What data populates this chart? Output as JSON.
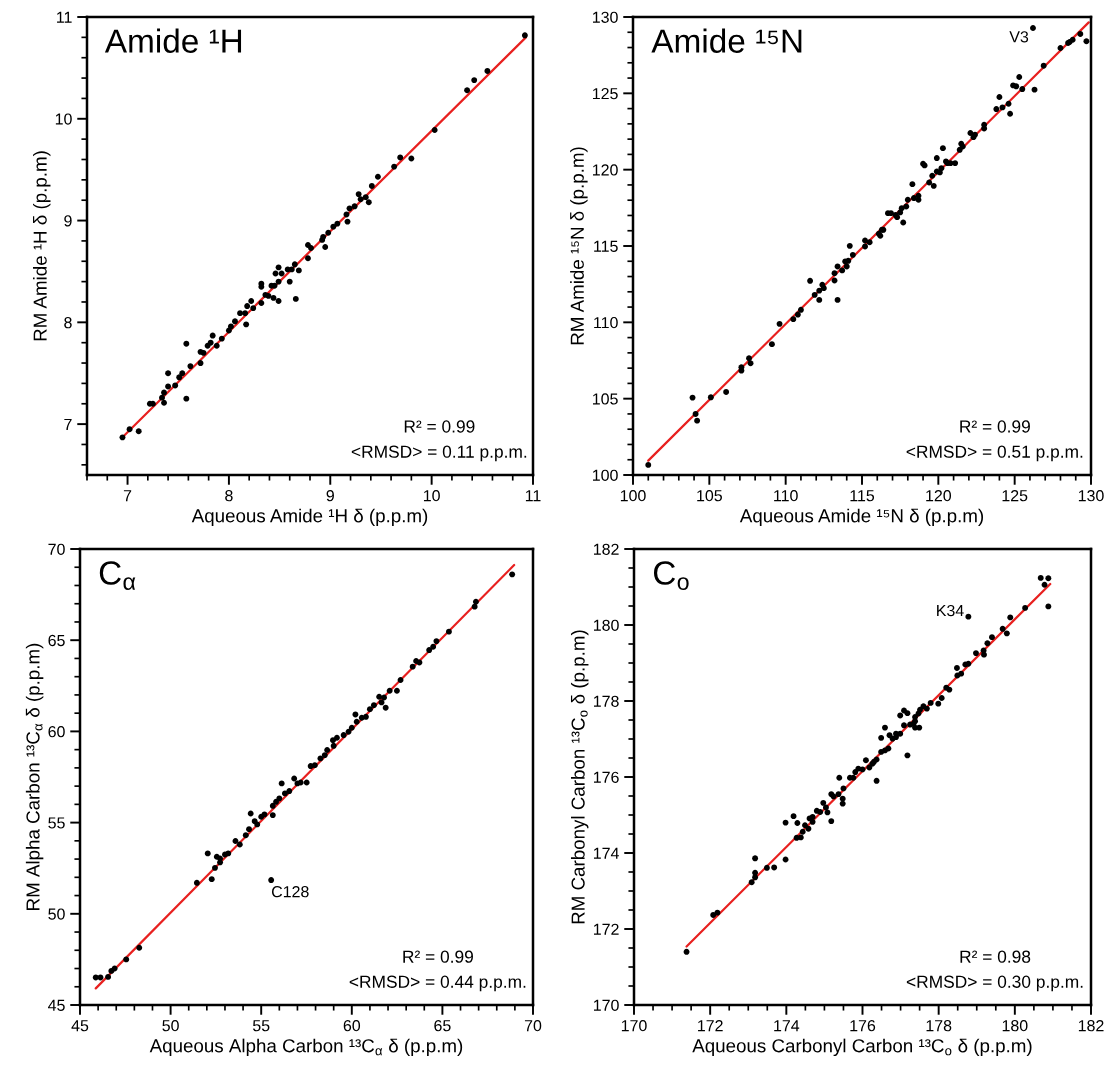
{
  "chart_data": [
    {
      "type": "scatter",
      "title": "Amide ¹H",
      "xlabel": "Aqueous Amide ¹H δ (p.p.m)",
      "ylabel": "RM Amide ¹H δ (p.p.m)",
      "xlim": [
        6.6,
        11
      ],
      "ylim": [
        6.5,
        11
      ],
      "xticks": [
        {
          "value": 6.6,
          "label": null
        },
        {
          "value": 6.8,
          "label": null
        },
        7,
        {
          "value": 7.2,
          "label": null
        },
        {
          "value": 7.4,
          "label": null
        },
        {
          "value": 7.6,
          "label": null
        },
        {
          "value": 7.8,
          "label": null
        },
        8,
        {
          "value": 8.2,
          "label": null
        },
        {
          "value": 8.4,
          "label": null
        },
        {
          "value": 8.6,
          "label": null
        },
        {
          "value": 8.8,
          "label": null
        },
        9,
        {
          "value": 9.2,
          "label": null
        },
        {
          "value": 9.4,
          "label": null
        },
        {
          "value": 9.6,
          "label": null
        },
        {
          "value": 9.8,
          "label": null
        },
        10,
        {
          "value": 10.2,
          "label": null
        },
        {
          "value": 10.4,
          "label": null
        },
        {
          "value": 10.6,
          "label": null
        },
        {
          "value": 10.8,
          "label": null
        },
        11
      ],
      "yticks": [
        {
          "value": 6.6,
          "label": null
        },
        {
          "value": 6.8,
          "label": null
        },
        7,
        {
          "value": 7.2,
          "label": null
        },
        {
          "value": 7.4,
          "label": null
        },
        {
          "value": 7.6,
          "label": null
        },
        {
          "value": 7.8,
          "label": null
        },
        8,
        {
          "value": 8.2,
          "label": null
        },
        {
          "value": 8.4,
          "label": null
        },
        {
          "value": 8.6,
          "label": null
        },
        {
          "value": 8.8,
          "label": null
        },
        9,
        {
          "value": 9.2,
          "label": null
        },
        {
          "value": 9.4,
          "label": null
        },
        {
          "value": 9.6,
          "label": null
        },
        {
          "value": 9.8,
          "label": null
        },
        10,
        {
          "value": 10.2,
          "label": null
        },
        {
          "value": 10.4,
          "label": null
        },
        {
          "value": 10.6,
          "label": null
        },
        {
          "value": 10.8,
          "label": null
        },
        11
      ],
      "annotations": [
        "R² = 0.99",
        "<RMSD> = 0.11 p.p.m."
      ],
      "series": [
        {
          "marker": "circle",
          "color": "#000000",
          "x": [
            10.92,
            10.55,
            10.42,
            10.35,
            10.03,
            9.8,
            9.69,
            9.63,
            9.47,
            9.41,
            9.38,
            9.35,
            9.28,
            9.3,
            9.24,
            9.19,
            9.16,
            9.17,
            9.07,
            9.03,
            8.98,
            8.93,
            8.92,
            8.95,
            8.81,
            8.78,
            8.78,
            8.69,
            8.65,
            8.62,
            8.58,
            8.6,
            8.52,
            8.49,
            8.46,
            8.49,
            8.45,
            8.42,
            8.32,
            8.32,
            8.36,
            8.39,
            8.44,
            8.49,
            8.66,
            8.32,
            8.22,
            8.24,
            8.18,
            8.16,
            8.11,
            8.17,
            8.06,
            8.02,
            8.0,
            7.93,
            7.84,
            7.82,
            7.79,
            7.75,
            7.72,
            7.72,
            7.88,
            7.62,
            7.58,
            7.58,
            7.54,
            7.51,
            7.47,
            7.4,
            7.4,
            7.36,
            7.34,
            7.36,
            7.25,
            7.22,
            7.11,
            7.02,
            6.95
          ],
          "values": [
            10.82,
            10.47,
            10.38,
            10.28,
            9.89,
            9.61,
            9.62,
            9.53,
            9.43,
            9.34,
            9.18,
            9.23,
            9.26,
            9.21,
            9.14,
            9.12,
            9.06,
            8.99,
            8.97,
            8.94,
            8.88,
            8.84,
            8.81,
            8.74,
            8.73,
            8.76,
            8.63,
            8.51,
            8.57,
            8.52,
            8.52,
            8.4,
            8.48,
            8.54,
            8.48,
            8.4,
            8.36,
            8.36,
            8.38,
            8.35,
            8.27,
            8.26,
            8.24,
            8.21,
            8.23,
            8.19,
            8.21,
            8.14,
            8.16,
            8.09,
            8.09,
            7.98,
            8.01,
            7.96,
            7.92,
            7.84,
            7.87,
            7.8,
            7.77,
            7.7,
            7.71,
            7.6,
            7.77,
            7.57,
            7.79,
            7.25,
            7.5,
            7.46,
            7.38,
            7.5,
            7.37,
            7.31,
            7.26,
            7.21,
            7.2,
            7.2,
            6.93,
            6.95,
            6.87
          ]
        },
        {
          "type": "line",
          "color": "#e8201f",
          "x": [
            6.97,
            10.93
          ],
          "values": [
            6.89,
            10.8
          ]
        }
      ]
    },
    {
      "type": "scatter",
      "title": "Amide ¹⁵N",
      "xlabel": "Aqueous Amide ¹⁵N δ (p.p.m)",
      "ylabel": "RM Amide ¹⁵N δ (p.p.m)",
      "xlim": [
        100,
        130
      ],
      "ylim": [
        100,
        130
      ],
      "xticks": [
        100,
        {
          "value": 101,
          "label": null
        },
        {
          "value": 102,
          "label": null
        },
        {
          "value": 103,
          "label": null
        },
        {
          "value": 104,
          "label": null
        },
        105,
        {
          "value": 106,
          "label": null
        },
        {
          "value": 107,
          "label": null
        },
        {
          "value": 108,
          "label": null
        },
        {
          "value": 109,
          "label": null
        },
        110,
        {
          "value": 111,
          "label": null
        },
        {
          "value": 112,
          "label": null
        },
        {
          "value": 113,
          "label": null
        },
        {
          "value": 114,
          "label": null
        },
        115,
        {
          "value": 116,
          "label": null
        },
        {
          "value": 117,
          "label": null
        },
        {
          "value": 118,
          "label": null
        },
        {
          "value": 119,
          "label": null
        },
        120,
        {
          "value": 121,
          "label": null
        },
        {
          "value": 122,
          "label": null
        },
        {
          "value": 123,
          "label": null
        },
        {
          "value": 124,
          "label": null
        },
        125,
        {
          "value": 126,
          "label": null
        },
        {
          "value": 127,
          "label": null
        },
        {
          "value": 128,
          "label": null
        },
        {
          "value": 129,
          "label": null
        },
        130
      ],
      "yticks": [
        100,
        {
          "value": 101,
          "label": null
        },
        {
          "value": 102,
          "label": null
        },
        {
          "value": 103,
          "label": null
        },
        {
          "value": 104,
          "label": null
        },
        105,
        {
          "value": 106,
          "label": null
        },
        {
          "value": 107,
          "label": null
        },
        {
          "value": 108,
          "label": null
        },
        {
          "value": 109,
          "label": null
        },
        110,
        {
          "value": 111,
          "label": null
        },
        {
          "value": 112,
          "label": null
        },
        {
          "value": 113,
          "label": null
        },
        {
          "value": 114,
          "label": null
        },
        115,
        {
          "value": 116,
          "label": null
        },
        {
          "value": 117,
          "label": null
        },
        {
          "value": 118,
          "label": null
        },
        {
          "value": 119,
          "label": null
        },
        120,
        {
          "value": 121,
          "label": null
        },
        {
          "value": 122,
          "label": null
        },
        {
          "value": 123,
          "label": null
        },
        {
          "value": 124,
          "label": null
        },
        125,
        {
          "value": 126,
          "label": null
        },
        {
          "value": 127,
          "label": null
        },
        {
          "value": 128,
          "label": null
        },
        {
          "value": 129,
          "label": null
        },
        130
      ],
      "annotations": [
        "R² = 0.99",
        "<RMSD> = 0.51 p.p.m.",
        {
          "text": "V3",
          "x": 126.2,
          "y": 129.28
        }
      ],
      "series": [
        {
          "marker": "circle",
          "color": "#000000",
          "x": [
            101.0,
            103.9,
            104.1,
            104.2,
            105.1,
            106.1,
            107.1,
            107.1,
            107.6,
            107.7,
            109.1,
            109.6,
            110.5,
            110.8,
            111.0,
            111.6,
            111.9,
            112.2,
            112.2,
            112.4,
            112.5,
            113.2,
            113.2,
            113.4,
            113.4,
            113.7,
            113.9,
            114.1,
            114.0,
            114.2,
            114.4,
            115.2,
            115.2,
            115.5,
            116.1,
            116.3,
            116.4,
            116.2,
            116.7,
            116.9,
            117.2,
            117.3,
            117.5,
            117.6,
            117.7,
            117.9,
            118.0,
            118.3,
            118.4,
            118.7,
            118.7,
            119.0,
            119.1,
            119.4,
            119.6,
            119.7,
            119.9,
            119.9,
            120.1,
            120.2,
            120.3,
            120.5,
            120.6,
            120.8,
            121.1,
            121.4,
            121.5,
            121.6,
            122.1,
            122.3,
            122.4,
            123.0,
            123.0,
            123.8,
            124.2,
            124.0,
            124.6,
            124.7,
            124.9,
            125.1,
            125.3,
            125.5,
            126.3,
            126.2,
            126.9,
            128.0,
            128.5,
            128.6,
            128.8,
            129.3,
            129.7
          ],
          "values": [
            100.66,
            105.07,
            104.0,
            103.56,
            105.09,
            105.44,
            107.06,
            106.84,
            107.65,
            107.32,
            108.57,
            109.9,
            110.21,
            110.51,
            110.82,
            112.72,
            111.8,
            112.08,
            111.47,
            112.46,
            112.24,
            113.22,
            112.74,
            113.66,
            111.47,
            113.4,
            113.99,
            114.03,
            113.66,
            115.01,
            114.42,
            115.36,
            114.97,
            115.25,
            115.8,
            116.06,
            116.06,
            115.67,
            117.15,
            117.15,
            117.04,
            116.89,
            117.2,
            117.48,
            116.54,
            117.59,
            118.03,
            119.05,
            118.14,
            118.29,
            118.03,
            120.39,
            120.28,
            119.16,
            119.6,
            118.94,
            120.76,
            119.88,
            119.82,
            120.1,
            121.41,
            120.54,
            120.43,
            120.43,
            120.43,
            121.3,
            121.7,
            121.52,
            122.4,
            122.13,
            122.29,
            122.94,
            122.7,
            123.97,
            124.08,
            124.76,
            124.32,
            123.66,
            125.52,
            125.46,
            126.07,
            125.28,
            125.24,
            129.28,
            126.81,
            127.97,
            128.3,
            128.36,
            128.51,
            128.89,
            128.41
          ]
        },
        {
          "type": "line",
          "color": "#e8201f",
          "x": [
            101.0,
            129.85
          ],
          "values": [
            100.94,
            129.65
          ]
        }
      ]
    },
    {
      "type": "scatter",
      "title": "C$_{α}$",
      "xlabel": "Aqueous Alpha Carbon ¹³C$_{α}$ δ (p.p.m)",
      "ylabel": "RM Alpha Carbon ¹³C$_{α}$ δ (p.p.m)",
      "xlim": [
        45,
        70
      ],
      "ylim": [
        45,
        70
      ],
      "xticks": [
        45,
        {
          "value": 46,
          "label": null
        },
        {
          "value": 47,
          "label": null
        },
        {
          "value": 48,
          "label": null
        },
        {
          "value": 49,
          "label": null
        },
        50,
        {
          "value": 51,
          "label": null
        },
        {
          "value": 52,
          "label": null
        },
        {
          "value": 53,
          "label": null
        },
        {
          "value": 54,
          "label": null
        },
        55,
        {
          "value": 56,
          "label": null
        },
        {
          "value": 57,
          "label": null
        },
        {
          "value": 58,
          "label": null
        },
        {
          "value": 59,
          "label": null
        },
        60,
        {
          "value": 61,
          "label": null
        },
        {
          "value": 62,
          "label": null
        },
        {
          "value": 63,
          "label": null
        },
        {
          "value": 64,
          "label": null
        },
        65,
        {
          "value": 66,
          "label": null
        },
        {
          "value": 67,
          "label": null
        },
        {
          "value": 68,
          "label": null
        },
        {
          "value": 69,
          "label": null
        },
        70
      ],
      "yticks": [
        45,
        {
          "value": 46,
          "label": null
        },
        {
          "value": 47,
          "label": null
        },
        {
          "value": 48,
          "label": null
        },
        {
          "value": 49,
          "label": null
        },
        50,
        {
          "value": 51,
          "label": null
        },
        {
          "value": 52,
          "label": null
        },
        {
          "value": 53,
          "label": null
        },
        {
          "value": 54,
          "label": null
        },
        55,
        {
          "value": 56,
          "label": null
        },
        {
          "value": 57,
          "label": null
        },
        {
          "value": 58,
          "label": null
        },
        {
          "value": 59,
          "label": null
        },
        60,
        {
          "value": 61,
          "label": null
        },
        {
          "value": 62,
          "label": null
        },
        {
          "value": 63,
          "label": null
        },
        {
          "value": 64,
          "label": null
        },
        65,
        {
          "value": 66,
          "label": null
        },
        {
          "value": 67,
          "label": null
        },
        {
          "value": 68,
          "label": null
        },
        {
          "value": 69,
          "label": null
        },
        70
      ],
      "annotations": [
        "R² = 0.99",
        "<RMSD> = 0.44 p.p.m.",
        {
          "text": "C128",
          "x": 55.55,
          "y": 51.85
        }
      ],
      "series": [
        {
          "marker": "circle",
          "color": "#000000",
          "x": [
            68.85,
            66.85,
            66.78,
            65.36,
            64.67,
            64.49,
            64.27,
            63.73,
            63.55,
            63.36,
            62.69,
            62.49,
            62.09,
            61.87,
            61.78,
            61.51,
            61.64,
            61.22,
            61.0,
            60.78,
            60.55,
            60.27,
            60.2,
            60.0,
            59.82,
            59.55,
            59.18,
            58.96,
            59.0,
            58.64,
            58.51,
            58.27,
            57.96,
            57.73,
            57.51,
            57.18,
            56.82,
            57.0,
            56.55,
            56.31,
            56.13,
            56.0,
            55.82,
            55.64,
            55.64,
            55.55,
            55.18,
            55.0,
            54.78,
            54.64,
            54.42,
            54.33,
            54.15,
            53.82,
            53.58,
            53.18,
            53.0,
            52.73,
            52.73,
            52.55,
            52.45,
            52.05,
            52.27,
            51.45,
            48.27,
            47.55,
            46.91,
            46.73,
            46.55,
            46.13,
            45.87
          ],
          "values": [
            68.61,
            67.11,
            66.84,
            65.47,
            64.95,
            64.64,
            64.46,
            63.78,
            63.86,
            63.55,
            62.82,
            62.23,
            62.23,
            61.3,
            61.86,
            61.9,
            61.59,
            61.44,
            61.22,
            60.8,
            60.75,
            60.53,
            60.93,
            60.2,
            59.98,
            59.8,
            59.65,
            59.52,
            59.21,
            58.98,
            58.7,
            58.52,
            58.15,
            58.1,
            57.2,
            57.2,
            57.42,
            57.15,
            56.73,
            56.6,
            57.15,
            56.33,
            56.14,
            55.92,
            55.41,
            51.85,
            55.45,
            55.32,
            54.9,
            55.08,
            55.5,
            54.64,
            54.31,
            53.8,
            53.99,
            53.31,
            53.25,
            53.03,
            52.82,
            53.13,
            52.52,
            53.31,
            51.9,
            51.7,
            48.14,
            47.5,
            47.0,
            46.87,
            46.54,
            46.51,
            46.51
          ]
        },
        {
          "type": "line",
          "color": "#e8201f",
          "x": [
            45.87,
            68.96
          ],
          "values": [
            45.91,
            69.12
          ]
        }
      ]
    },
    {
      "type": "scatter",
      "title": "C$_{o}$",
      "xlabel": "Aqueous Carbonyl Carbon ¹³C$_{o}$ δ (p.p.m)",
      "ylabel": "RM Carbonyl Carbon ¹³C$_{o}$ δ (p.p.m)",
      "xlim": [
        170,
        182
      ],
      "ylim": [
        170,
        182
      ],
      "xticks": [
        170,
        {
          "value": 170.5,
          "label": null
        },
        {
          "value": 171,
          "label": null
        },
        {
          "value": 171.5,
          "label": null
        },
        172,
        {
          "value": 172.5,
          "label": null
        },
        {
          "value": 173,
          "label": null
        },
        {
          "value": 173.5,
          "label": null
        },
        174,
        {
          "value": 174.5,
          "label": null
        },
        {
          "value": 175,
          "label": null
        },
        {
          "value": 175.5,
          "label": null
        },
        176,
        {
          "value": 176.5,
          "label": null
        },
        {
          "value": 177,
          "label": null
        },
        {
          "value": 177.5,
          "label": null
        },
        178,
        {
          "value": 178.5,
          "label": null
        },
        {
          "value": 179,
          "label": null
        },
        {
          "value": 179.5,
          "label": null
        },
        180,
        {
          "value": 180.5,
          "label": null
        },
        {
          "value": 181,
          "label": null
        },
        {
          "value": 181.5,
          "label": null
        },
        182
      ],
      "yticks": [
        170,
        {
          "value": 170.5,
          "label": null
        },
        {
          "value": 171,
          "label": null
        },
        {
          "value": 171.5,
          "label": null
        },
        172,
        {
          "value": 172.5,
          "label": null
        },
        {
          "value": 173,
          "label": null
        },
        {
          "value": 173.5,
          "label": null
        },
        174,
        {
          "value": 174.5,
          "label": null
        },
        {
          "value": 175,
          "label": null
        },
        {
          "value": 175.5,
          "label": null
        },
        176,
        {
          "value": 176.5,
          "label": null
        },
        {
          "value": 177,
          "label": null
        },
        {
          "value": 177.5,
          "label": null
        },
        178,
        {
          "value": 178.5,
          "label": null
        },
        {
          "value": 179,
          "label": null
        },
        {
          "value": 179.5,
          "label": null
        },
        180,
        {
          "value": 180.5,
          "label": null
        },
        {
          "value": 181,
          "label": null
        },
        {
          "value": 181.5,
          "label": null
        },
        182
      ],
      "annotations": [
        "R² = 0.98",
        "<RMSD> = 0.30 p.p.m.",
        {
          "text": "K34",
          "x": 178.78,
          "y": 180.22
        }
      ],
      "series": [
        {
          "marker": "circle",
          "color": "#000000",
          "x": [
            171.38,
            172.08,
            172.19,
            173.09,
            173.18,
            173.18,
            173.18,
            173.49,
            173.68,
            173.98,
            173.98,
            174.19,
            174.29,
            174.27,
            174.38,
            174.43,
            174.49,
            174.58,
            174.61,
            174.69,
            174.69,
            174.8,
            174.89,
            174.97,
            175.04,
            175.08,
            175.18,
            175.18,
            175.24,
            175.37,
            175.39,
            175.48,
            175.48,
            175.5,
            175.67,
            175.76,
            175.81,
            175.89,
            176.0,
            176.09,
            176.18,
            176.26,
            176.3,
            176.37,
            176.37,
            176.49,
            176.59,
            176.68,
            176.49,
            176.59,
            176.71,
            176.79,
            176.88,
            176.88,
            176.99,
            176.99,
            177.09,
            177.09,
            177.18,
            177.18,
            177.25,
            177.34,
            177.38,
            177.38,
            177.47,
            177.38,
            177.49,
            177.51,
            177.6,
            177.69,
            177.79,
            177.99,
            178.08,
            178.2,
            178.28,
            178.48,
            178.49,
            178.59,
            178.7,
            178.78,
            178.78,
            178.98,
            179.18,
            179.19,
            179.28,
            179.4,
            179.68,
            179.79,
            179.88,
            180.27,
            180.68,
            180.78,
            180.88,
            180.88
          ],
          "values": [
            171.4,
            172.37,
            172.43,
            173.23,
            173.86,
            173.48,
            173.36,
            173.61,
            173.62,
            173.83,
            174.8,
            174.97,
            174.79,
            174.4,
            174.41,
            174.56,
            174.73,
            174.64,
            174.91,
            174.82,
            174.95,
            175.11,
            175.08,
            175.32,
            175.2,
            175.07,
            174.84,
            175.55,
            175.49,
            175.55,
            175.98,
            175.43,
            175.3,
            175.7,
            175.98,
            175.98,
            176.13,
            176.22,
            176.2,
            176.44,
            176.25,
            176.35,
            176.4,
            176.46,
            175.9,
            176.66,
            176.7,
            176.75,
            177.03,
            177.3,
            177.1,
            177.01,
            177.05,
            177.14,
            177.14,
            177.62,
            177.75,
            177.36,
            177.68,
            176.57,
            177.38,
            177.4,
            177.58,
            177.47,
            177.67,
            177.3,
            177.3,
            177.77,
            177.86,
            177.8,
            177.95,
            177.93,
            178.08,
            178.35,
            178.3,
            178.87,
            178.67,
            178.72,
            178.96,
            178.98,
            180.22,
            179.26,
            179.33,
            179.22,
            179.52,
            179.68,
            179.9,
            179.78,
            180.2,
            180.45,
            181.24,
            181.06,
            181.23,
            180.49
          ]
        },
        {
          "type": "line",
          "color": "#e8201f",
          "x": [
            171.38,
            180.93
          ],
          "values": [
            171.54,
            181.08
          ]
        }
      ]
    }
  ]
}
